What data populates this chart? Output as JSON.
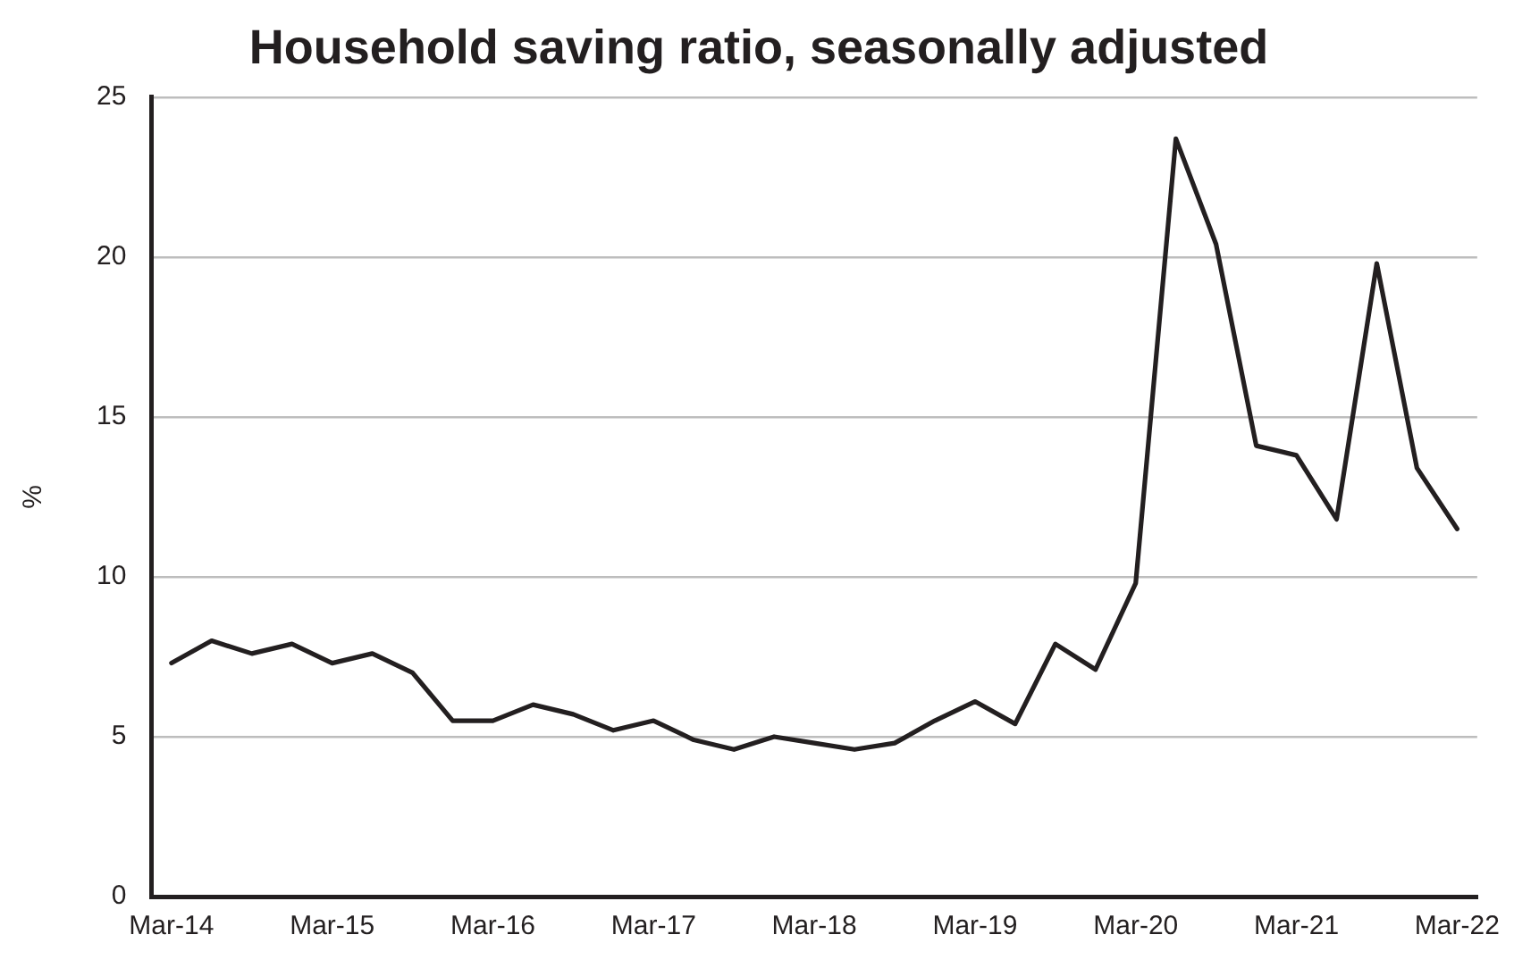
{
  "chart_data": {
    "type": "line",
    "title": "Household saving ratio, seasonally adjusted",
    "ylabel": "%",
    "categories": [
      "Mar-14",
      null,
      null,
      null,
      "Mar-15",
      null,
      null,
      null,
      "Mar-16",
      null,
      null,
      null,
      "Mar-17",
      null,
      null,
      null,
      "Mar-18",
      null,
      null,
      null,
      "Mar-19",
      null,
      null,
      null,
      "Mar-20",
      null,
      null,
      null,
      "Mar-21",
      null,
      null,
      null,
      "Mar-22"
    ],
    "series": [
      {
        "color": "#231f20",
        "values": [
          7.3,
          8.0,
          7.6,
          7.9,
          7.3,
          7.6,
          7.0,
          5.5,
          5.5,
          6.0,
          5.7,
          5.2,
          5.5,
          4.9,
          4.6,
          5.0,
          4.8,
          4.6,
          4.8,
          5.5,
          6.1,
          5.4,
          7.9,
          7.1,
          9.8,
          23.7,
          20.4,
          14.1,
          13.8,
          11.8,
          19.8,
          13.4,
          11.5
        ]
      }
    ],
    "ylim": [
      0,
      25
    ],
    "yticks": [
      0,
      5,
      10,
      15,
      20,
      25
    ],
    "grid": "y",
    "marker": "none",
    "line_style": "solid"
  }
}
